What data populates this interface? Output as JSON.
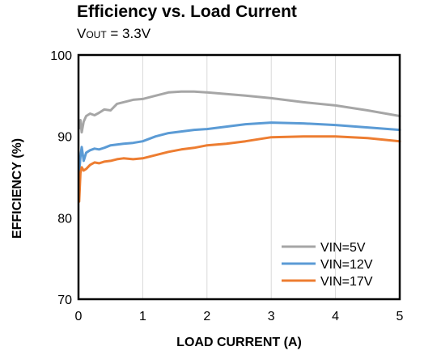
{
  "chart_data": {
    "type": "line",
    "title": "Efficiency vs. Load Current",
    "subtitle": {
      "prefix": "V",
      "sub": "OUT",
      "suffix": " = 3.3V"
    },
    "xlabel": "LOAD CURRENT  (A)",
    "ylabel": "EFFICIENCY  (%)",
    "xlim": [
      0,
      5
    ],
    "ylim": [
      70,
      100
    ],
    "xticks": [
      0,
      1,
      2,
      3,
      4,
      5
    ],
    "yticks": [
      70,
      80,
      90,
      100
    ],
    "grid": "vertical",
    "legend_position": "bottom-right",
    "series": [
      {
        "name": "VIN=5V",
        "color": "#a6a6a6",
        "x": [
          0.01,
          0.03,
          0.05,
          0.08,
          0.12,
          0.18,
          0.25,
          0.32,
          0.4,
          0.5,
          0.6,
          0.7,
          0.85,
          1.0,
          1.2,
          1.4,
          1.6,
          1.8,
          2.0,
          2.3,
          2.6,
          3.0,
          3.5,
          4.0,
          4.5,
          5.0
        ],
        "y": [
          91.0,
          92.0,
          90.5,
          91.8,
          92.5,
          92.8,
          92.6,
          92.9,
          93.3,
          93.2,
          94.0,
          94.2,
          94.5,
          94.6,
          95.0,
          95.4,
          95.5,
          95.5,
          95.4,
          95.2,
          95.0,
          94.7,
          94.2,
          93.8,
          93.2,
          92.5
        ]
      },
      {
        "name": "VIN=12V",
        "color": "#5b9bd5",
        "x": [
          0.01,
          0.03,
          0.05,
          0.08,
          0.12,
          0.18,
          0.25,
          0.32,
          0.4,
          0.5,
          0.6,
          0.7,
          0.85,
          1.0,
          1.2,
          1.4,
          1.6,
          1.8,
          2.0,
          2.3,
          2.6,
          3.0,
          3.5,
          4.0,
          4.5,
          5.0
        ],
        "y": [
          85.5,
          87.5,
          88.7,
          87.0,
          88.0,
          88.3,
          88.5,
          88.4,
          88.6,
          88.9,
          89.0,
          89.1,
          89.2,
          89.4,
          90.0,
          90.4,
          90.6,
          90.8,
          90.9,
          91.2,
          91.5,
          91.7,
          91.6,
          91.4,
          91.1,
          90.8
        ]
      },
      {
        "name": "VIN=17V",
        "color": "#ed7d31",
        "x": [
          0.01,
          0.03,
          0.05,
          0.08,
          0.12,
          0.18,
          0.25,
          0.32,
          0.4,
          0.5,
          0.6,
          0.7,
          0.85,
          1.0,
          1.2,
          1.4,
          1.6,
          1.8,
          2.0,
          2.3,
          2.6,
          3.0,
          3.5,
          4.0,
          4.5,
          5.0
        ],
        "y": [
          82.0,
          85.5,
          86.2,
          85.8,
          86.0,
          86.5,
          86.8,
          86.7,
          86.9,
          87.0,
          87.2,
          87.3,
          87.2,
          87.3,
          87.7,
          88.1,
          88.4,
          88.6,
          88.9,
          89.1,
          89.4,
          89.9,
          90.0,
          90.0,
          89.8,
          89.4
        ]
      }
    ]
  }
}
